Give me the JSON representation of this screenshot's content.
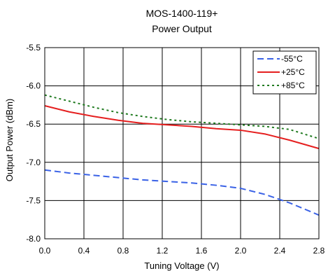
{
  "chart_data": {
    "type": "line",
    "title": "MOS-1400-119+",
    "subtitle": "Power Output",
    "xlabel": "Tuning Voltage (V)",
    "ylabel": "Output Power (dBm)",
    "xlim": [
      0.0,
      2.8
    ],
    "ylim": [
      -8.0,
      -5.5
    ],
    "xticks": [
      0.0,
      0.4,
      0.8,
      1.2,
      1.6,
      2.0,
      2.4,
      2.8
    ],
    "yticks": [
      -5.5,
      -6.0,
      -6.5,
      -7.0,
      -7.5,
      -8.0
    ],
    "xtick_labels": [
      "0.0",
      "0.4",
      "0.8",
      "1.2",
      "1.6",
      "2.0",
      "2.4",
      "2.8"
    ],
    "ytick_labels": [
      "-5.5",
      "-6.0",
      "-6.5",
      "-7.0",
      "-7.5",
      "-8.0"
    ],
    "grid": true,
    "legend_position": "top-right",
    "x": [
      0.0,
      0.25,
      0.5,
      0.75,
      1.0,
      1.25,
      1.5,
      1.75,
      2.0,
      2.25,
      2.5,
      2.8
    ],
    "series": [
      {
        "name": "-55°C",
        "color": "#3a62e6",
        "dash": "dashed",
        "values": [
          -7.1,
          -7.14,
          -7.17,
          -7.2,
          -7.23,
          -7.25,
          -7.27,
          -7.3,
          -7.34,
          -7.42,
          -7.53,
          -7.69
        ]
      },
      {
        "name": "+25°C",
        "color": "#e51f1f",
        "dash": "solid",
        "values": [
          -6.26,
          -6.34,
          -6.4,
          -6.45,
          -6.49,
          -6.51,
          -6.53,
          -6.56,
          -6.58,
          -6.63,
          -6.71,
          -6.82
        ]
      },
      {
        "name": "+85°C",
        "color": "#1f7a1f",
        "dash": "dotted",
        "values": [
          -6.12,
          -6.2,
          -6.28,
          -6.35,
          -6.4,
          -6.44,
          -6.47,
          -6.49,
          -6.51,
          -6.53,
          -6.57,
          -6.69
        ]
      }
    ]
  }
}
